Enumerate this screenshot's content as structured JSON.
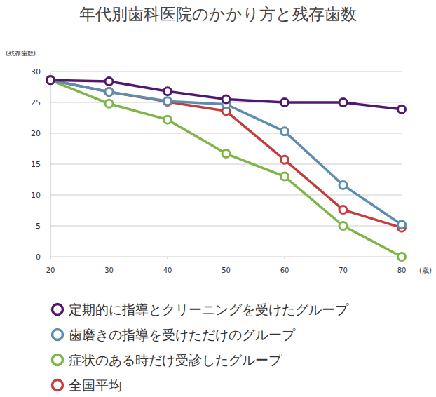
{
  "chart_data": {
    "type": "line",
    "title": "年代別歯科医院のかかり方と残存歯数",
    "y_label": "(残存歯数)",
    "x_label": "(歳)",
    "x": [
      20,
      30,
      40,
      50,
      60,
      70,
      80
    ],
    "xlim": [
      20,
      80
    ],
    "xticks": [
      20,
      30,
      40,
      50,
      60,
      70,
      80
    ],
    "ylim": [
      0,
      30
    ],
    "yticks": [
      0,
      5,
      10,
      15,
      20,
      25,
      30
    ],
    "grid": true,
    "legend": "bottom",
    "marker": "circle",
    "line_style": "solid",
    "series": [
      {
        "name": "定期的に指導とクリーニングを受けたグループ",
        "color": "#52186f",
        "values": [
          28.6,
          28.4,
          26.8,
          25.5,
          25.0,
          25.0,
          23.9
        ]
      },
      {
        "name": "歯磨きの指導を受けただけのグループ",
        "color": "#5b8db0",
        "values": [
          28.6,
          26.7,
          25.2,
          24.7,
          20.3,
          11.6,
          5.2
        ]
      },
      {
        "name": "症状のある時だけ受診したグループ",
        "color": "#7db646",
        "values": [
          28.6,
          24.8,
          22.2,
          16.7,
          13.0,
          5.0,
          0
        ]
      },
      {
        "name": "全国平均",
        "color": "#c43d3d",
        "values": [
          28.6,
          26.7,
          25.1,
          23.6,
          15.7,
          7.6,
          4.7
        ]
      }
    ]
  }
}
